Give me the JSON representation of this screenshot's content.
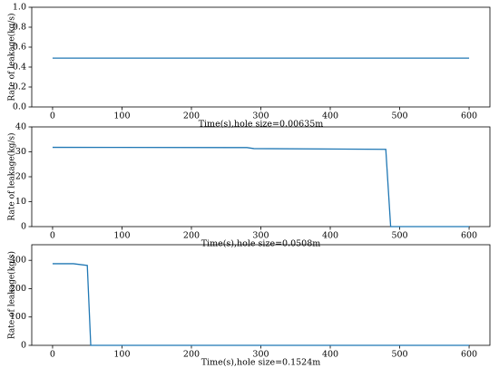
{
  "chart_data": [
    {
      "type": "line",
      "x_label": "Time(s),hole size=0.00635m",
      "y_label": "Rate of leakage(kg/s)",
      "x": [
        0,
        600
      ],
      "values": [
        0.49,
        0.49
      ],
      "color": "#1f77b4",
      "xlim": [
        -30,
        630
      ],
      "xticks": [
        0,
        100,
        200,
        300,
        400,
        500,
        600
      ],
      "ylim": [
        0,
        1
      ],
      "yticks": [
        {
          "value": 0,
          "label": "0.0"
        },
        0.2,
        0.4,
        0.6,
        0.8,
        {
          "value": 1,
          "label": "1.0"
        }
      ]
    },
    {
      "type": "line",
      "x_label": "Time(s),hole size=0.0508m",
      "y_label": "Rate of leakage(kg/s)",
      "x": [
        0,
        280,
        290,
        480,
        487,
        600
      ],
      "values": [
        31.8,
        31.7,
        31.3,
        31,
        0,
        0
      ],
      "color": "#1f77b4",
      "xlim": [
        -30,
        630
      ],
      "xticks": [
        0,
        100,
        200,
        300,
        400,
        500,
        600
      ],
      "ylim": [
        0,
        40
      ],
      "yticks": [
        0,
        10,
        20,
        30,
        40
      ]
    },
    {
      "type": "line",
      "x_label": "Time(s),hole size=0.1524m",
      "y_label": "Rate of leakage(kg/s)",
      "x": [
        0,
        30,
        50,
        55,
        600
      ],
      "values": [
        288,
        288,
        282,
        0,
        0
      ],
      "color": "#1f77b4",
      "xlim": [
        -30,
        630
      ],
      "xticks": [
        0,
        100,
        200,
        300,
        400,
        500,
        600
      ],
      "ylim": [
        0,
        355
      ],
      "yticks": [
        0,
        100,
        200,
        300
      ]
    }
  ]
}
